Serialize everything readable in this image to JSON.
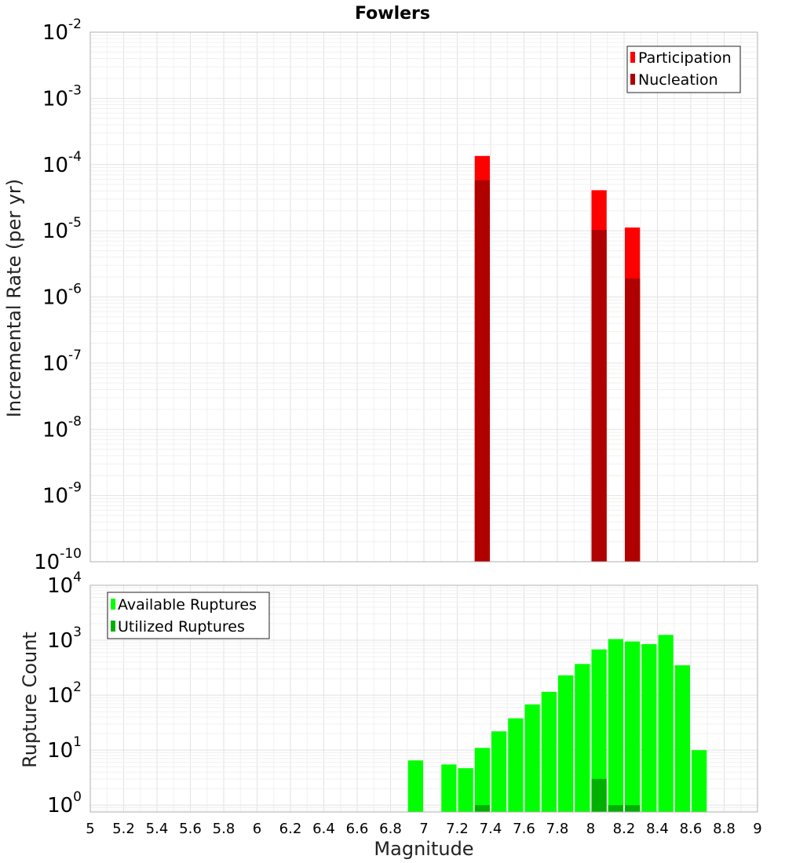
{
  "title": "Fowlers",
  "chart_data": [
    {
      "type": "bar",
      "scale_y": "log",
      "ylabel": "Incremental Rate (per yr)",
      "xlim": [
        5,
        9
      ],
      "ylim": [
        1e-10,
        0.01
      ],
      "bin_width": 0.1,
      "grid": true,
      "legend_position": "top-right",
      "y_ticks": [
        {
          "base": "10",
          "exp": "-10",
          "value": 1e-10
        },
        {
          "base": "10",
          "exp": "-9",
          "value": 1e-09
        },
        {
          "base": "10",
          "exp": "-8",
          "value": 1e-08
        },
        {
          "base": "10",
          "exp": "-7",
          "value": 1e-07
        },
        {
          "base": "10",
          "exp": "-6",
          "value": 1e-06
        },
        {
          "base": "10",
          "exp": "-5",
          "value": 1e-05
        },
        {
          "base": "10",
          "exp": "-4",
          "value": 0.0001
        },
        {
          "base": "10",
          "exp": "-3",
          "value": 0.001
        },
        {
          "base": "10",
          "exp": "-2",
          "value": 0.01
        }
      ],
      "series": [
        {
          "name": "Participation",
          "color": "#ff0000",
          "points": [
            {
              "x": 7.35,
              "y": 0.000135
            },
            {
              "x": 8.05,
              "y": 4.1e-05
            },
            {
              "x": 8.25,
              "y": 1.12e-05
            }
          ]
        },
        {
          "name": "Nucleation",
          "color": "#b00000",
          "points": [
            {
              "x": 7.35,
              "y": 5.8e-05
            },
            {
              "x": 8.05,
              "y": 1.03e-05
            },
            {
              "x": 8.25,
              "y": 1.9e-06
            }
          ]
        }
      ]
    },
    {
      "type": "bar",
      "scale_y": "log",
      "ylabel": "Rupture Count",
      "xlabel": "Magnitude",
      "xlim": [
        5,
        9
      ],
      "ylim": [
        0.75,
        10000
      ],
      "bin_width": 0.1,
      "grid": true,
      "legend_position": "top-left",
      "x_ticks": [
        "5",
        "5.2",
        "5.4",
        "5.6",
        "5.8",
        "6",
        "6.2",
        "6.4",
        "6.6",
        "6.8",
        "7",
        "7.2",
        "7.4",
        "7.6",
        "7.8",
        "8",
        "8.2",
        "8.4",
        "8.6",
        "8.8",
        "9"
      ],
      "y_ticks": [
        {
          "base": "10",
          "exp": "0",
          "value": 1
        },
        {
          "base": "10",
          "exp": "1",
          "value": 10
        },
        {
          "base": "10",
          "exp": "2",
          "value": 100
        },
        {
          "base": "10",
          "exp": "3",
          "value": 1000
        },
        {
          "base": "10",
          "exp": "4",
          "value": 10000
        }
      ],
      "series": [
        {
          "name": "Available Ruptures",
          "color": "#00ff00",
          "points": [
            {
              "x": 6.95,
              "y": 6.5
            },
            {
              "x": 7.15,
              "y": 5.5
            },
            {
              "x": 7.25,
              "y": 4.7
            },
            {
              "x": 7.35,
              "y": 11
            },
            {
              "x": 7.45,
              "y": 22
            },
            {
              "x": 7.55,
              "y": 38
            },
            {
              "x": 7.65,
              "y": 68
            },
            {
              "x": 7.75,
              "y": 115
            },
            {
              "x": 7.85,
              "y": 230
            },
            {
              "x": 7.95,
              "y": 370
            },
            {
              "x": 8.05,
              "y": 680
            },
            {
              "x": 8.15,
              "y": 1050
            },
            {
              "x": 8.25,
              "y": 950
            },
            {
              "x": 8.35,
              "y": 850
            },
            {
              "x": 8.45,
              "y": 1250
            },
            {
              "x": 8.55,
              "y": 350
            },
            {
              "x": 8.65,
              "y": 10
            }
          ]
        },
        {
          "name": "Utilized Ruptures",
          "color": "#00b000",
          "points": [
            {
              "x": 7.35,
              "y": 1
            },
            {
              "x": 8.05,
              "y": 3
            },
            {
              "x": 8.15,
              "y": 1
            },
            {
              "x": 8.25,
              "y": 1
            }
          ]
        }
      ]
    }
  ]
}
